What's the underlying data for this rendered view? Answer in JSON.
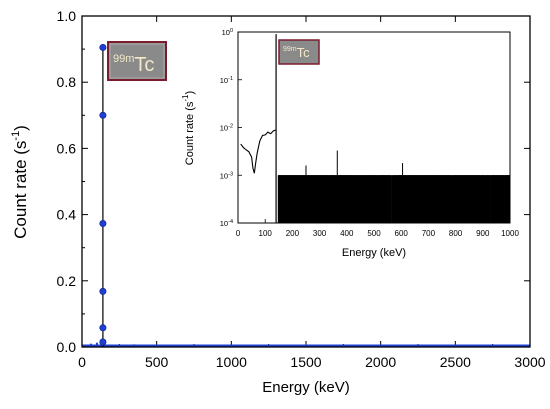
{
  "chart_data": [
    {
      "type": "line",
      "title": "",
      "xlabel": "Energy (keV)",
      "ylabel": "Count rate (s",
      "ylabel_sup": "-1",
      "ylabel_end": ")",
      "xlim": [
        0,
        3000
      ],
      "ylim": [
        0,
        1.0
      ],
      "xticks": [
        0,
        500,
        1000,
        1500,
        2000,
        2500,
        3000
      ],
      "yticks": [
        0.0,
        0.2,
        0.4,
        0.6,
        0.8,
        1.0
      ],
      "ytick_labels": [
        "0.0",
        "0.2",
        "0.4",
        "0.6",
        "0.8",
        "1.0"
      ],
      "grid": false,
      "annotation": {
        "sup": "99m",
        "text": "Tc"
      },
      "peak": {
        "x": 140,
        "points": [
          {
            "x": 140,
            "y": 0.905
          },
          {
            "x": 140,
            "y": 0.7
          },
          {
            "x": 140,
            "y": 0.373
          },
          {
            "x": 140,
            "y": 0.168
          },
          {
            "x": 140,
            "y": 0.058
          },
          {
            "x": 140,
            "y": 0.015
          }
        ]
      },
      "baseline": {
        "from": 0,
        "to": 3000,
        "y": 0.003
      },
      "small_bumps": [
        {
          "x": 60,
          "y": 0.01
        },
        {
          "x": 100,
          "y": 0.013
        },
        {
          "x": 350,
          "y": 0.008
        }
      ],
      "series_color": "#1f3fd0",
      "line_color": "#000000"
    },
    {
      "type": "line",
      "title": "",
      "xlabel": "Energy (keV)",
      "ylabel": "Count rate (s",
      "ylabel_sup": "-1",
      "ylabel_end": ")",
      "yscale": "log",
      "xlim": [
        0,
        1000
      ],
      "ylim": [
        0.0001,
        1
      ],
      "xticks": [
        0,
        100,
        200,
        300,
        400,
        500,
        600,
        700,
        800,
        900,
        1000
      ],
      "yticks": [
        {
          "value": 0.0001,
          "base": "10",
          "exp": "-4"
        },
        {
          "value": 0.001,
          "base": "10",
          "exp": "-3"
        },
        {
          "value": 0.01,
          "base": "10",
          "exp": "-2"
        },
        {
          "value": 0.1,
          "base": "10",
          "exp": "-1"
        },
        {
          "value": 1,
          "base": "10",
          "exp": "0"
        }
      ],
      "grid": false,
      "annotation": {
        "sup": "99m",
        "text": "Tc"
      },
      "low_energy_trace": [
        {
          "x": 10,
          "y": 0.0045
        },
        {
          "x": 20,
          "y": 0.0038
        },
        {
          "x": 30,
          "y": 0.0034
        },
        {
          "x": 40,
          "y": 0.0031
        },
        {
          "x": 50,
          "y": 0.0024
        },
        {
          "x": 55,
          "y": 0.0014
        },
        {
          "x": 60,
          "y": 0.0011
        },
        {
          "x": 65,
          "y": 0.0018
        },
        {
          "x": 70,
          "y": 0.0028
        },
        {
          "x": 80,
          "y": 0.0052
        },
        {
          "x": 90,
          "y": 0.0068
        },
        {
          "x": 100,
          "y": 0.007
        },
        {
          "x": 110,
          "y": 0.008
        },
        {
          "x": 120,
          "y": 0.0074
        },
        {
          "x": 130,
          "y": 0.0085
        },
        {
          "x": 138,
          "y": 0.0088
        }
      ],
      "peak": {
        "x": 140,
        "y": 0.9
      },
      "noise_level": 0.001,
      "noise_floor": 0.0001,
      "noise_range": [
        148,
        1000
      ],
      "notable_lines": [
        {
          "x": 250,
          "y": 0.0016
        },
        {
          "x": 365,
          "y": 0.0033
        },
        {
          "x": 605,
          "y": 0.0018
        }
      ],
      "line_color": "#000000"
    }
  ],
  "colors": {
    "label_box_fill": "#8a8a8a",
    "label_box_border": "#7a1c2e",
    "label_text": "#f2e8c8"
  }
}
